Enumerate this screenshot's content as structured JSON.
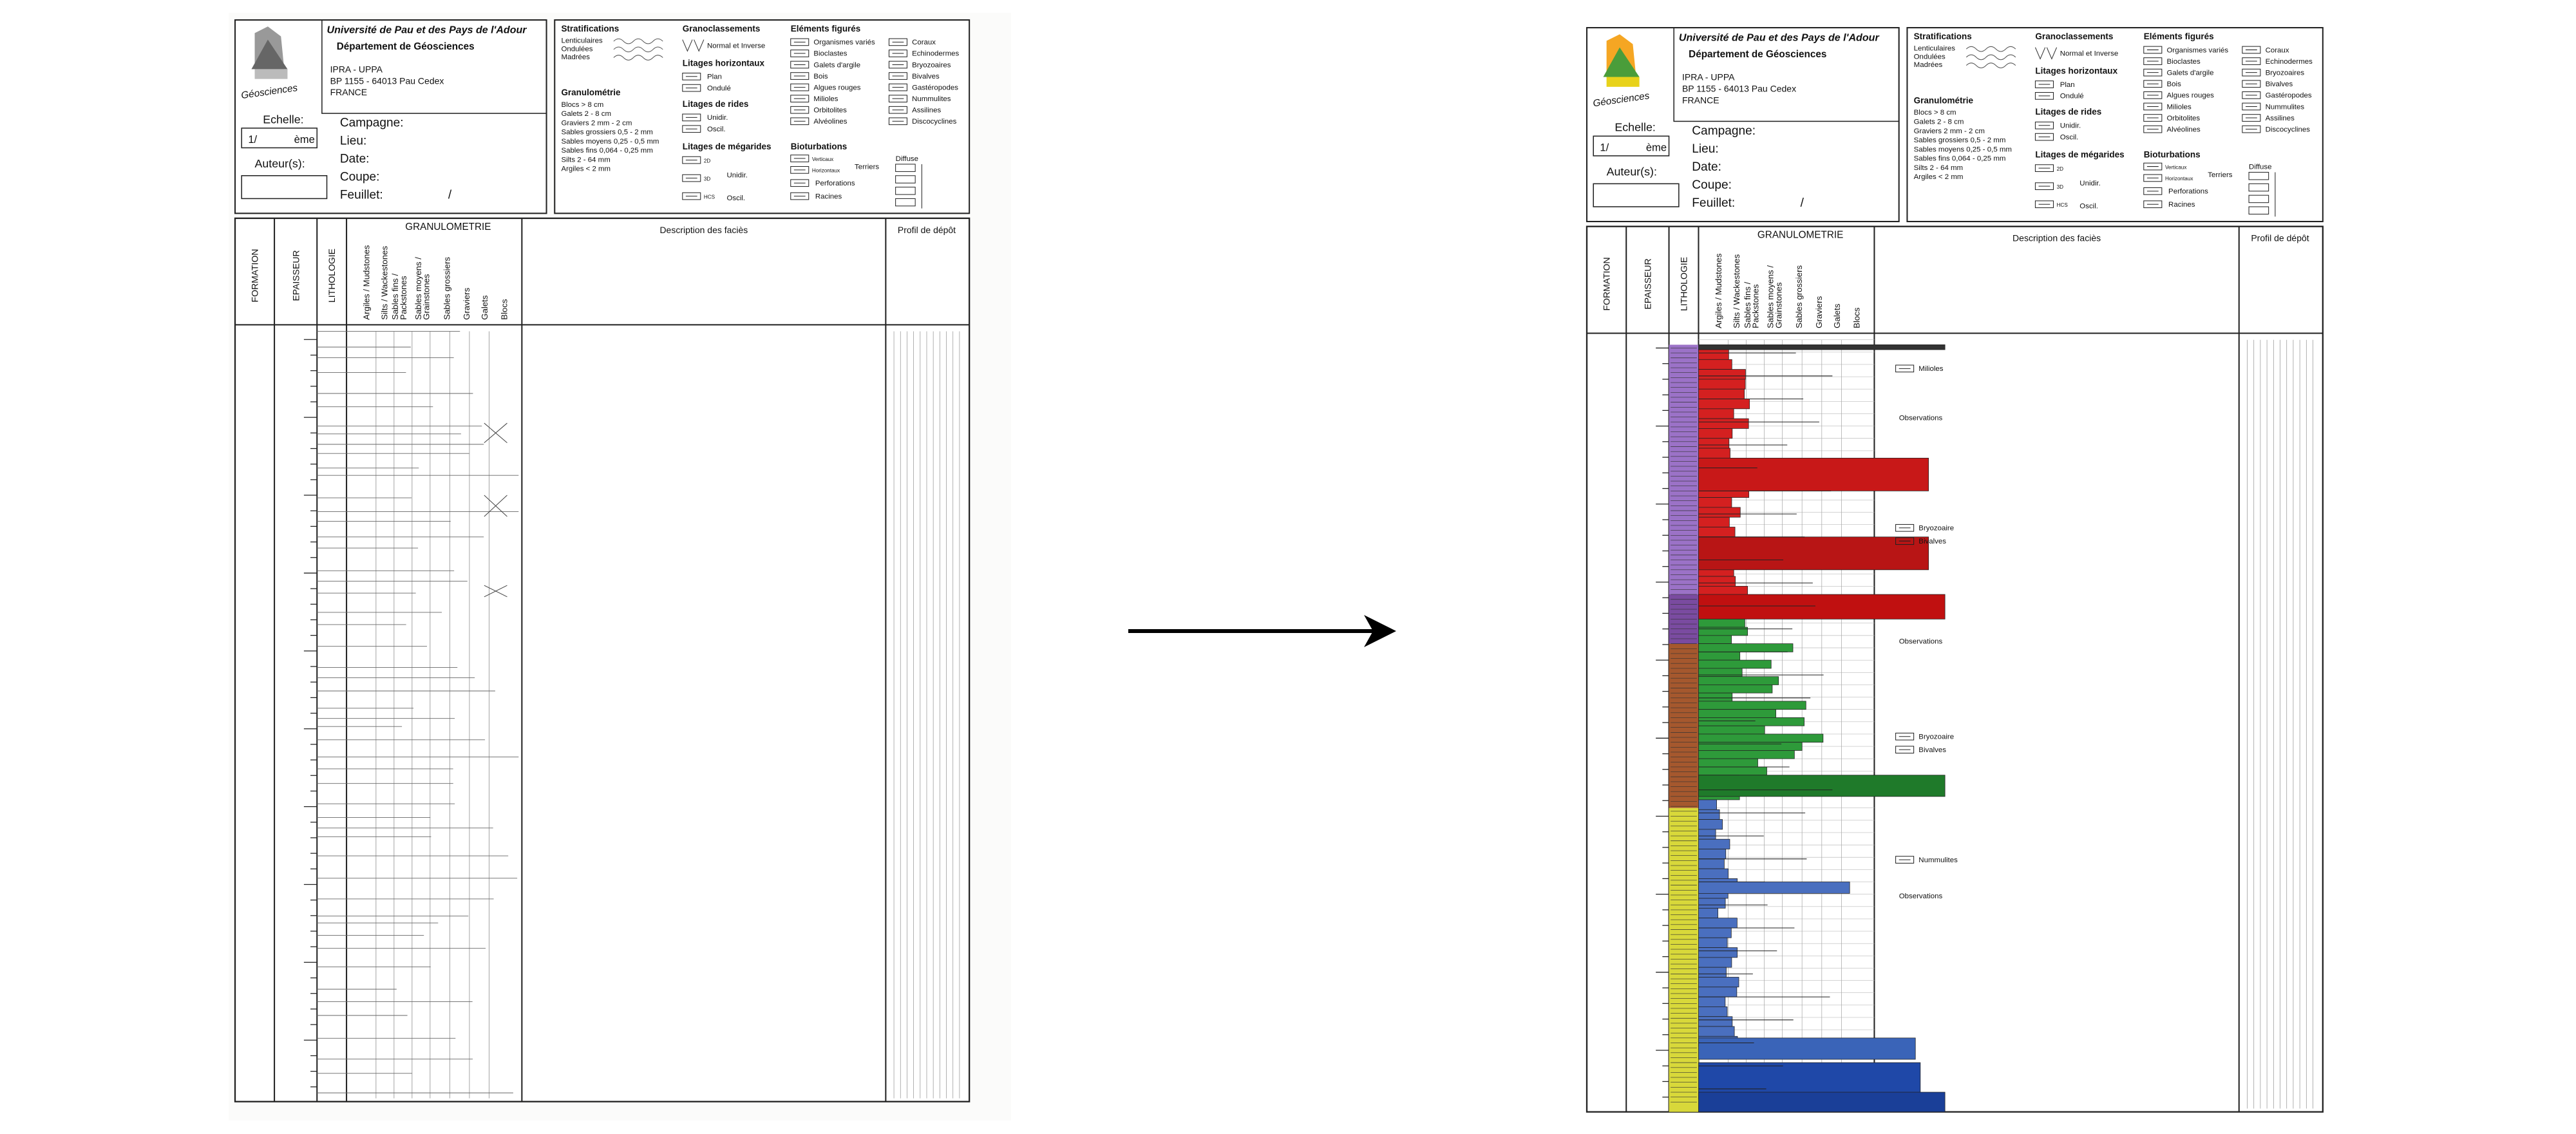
{
  "header": {
    "university": "Université de Pau et des Pays de l'Adour",
    "department": "Département de Géosciences",
    "lines": [
      "IPRA - UPPA",
      "BP 1155 - 64013 Pau Cedex",
      "FRANCE"
    ],
    "logo": "Géosciences"
  },
  "form": {
    "scale": "Echelle:",
    "scale_prefix": "1/",
    "scale_suffix": "ème",
    "authors": "Auteur(s):",
    "fields": [
      "Campagne:",
      "Lieu:",
      "Date:",
      "Coupe:",
      "Feuillet:"
    ],
    "sheet_sep": "/"
  },
  "legend": {
    "stratifications": {
      "title": "Stratifications",
      "items": [
        "Lenticulaires",
        "Ondulées",
        "Madrées"
      ]
    },
    "granulometry": {
      "title": "Granulométrie",
      "items": [
        "Blocs > 8 cm",
        "Galets 2 - 8 cm",
        "Graviers 2 mm - 2 cm",
        "Sables grossiers 0,5 - 2 mm",
        "Sables moyens 0,25 - 0,5 mm",
        "Sables fins 0,064 - 0,25 mm",
        "Silts 2 - 64 mm",
        "Argiles < 2 mm"
      ]
    },
    "grading": {
      "title": "Granoclassements",
      "items": [
        "Normal et Inverse"
      ]
    },
    "horizontal": {
      "title": "Litages horizontaux",
      "items": [
        "Plan",
        "Ondulé"
      ]
    },
    "ripples": {
      "title": "Litages de rides",
      "items": [
        "Unidir.",
        "Oscil."
      ]
    },
    "megaripples": {
      "title": "Litages de mégarides",
      "marks": [
        "2D",
        "3D",
        "HCS"
      ],
      "items": [
        "Unidir.",
        "Oscil."
      ]
    },
    "elements": {
      "title": "Eléments figurés",
      "items": [
        "Organismes variés",
        "Bioclastes",
        "Galets d'argile",
        "Bois",
        "Algues rouges",
        "Milioles",
        "Orbitolites",
        "Alvéolines",
        "Coraux",
        "Echinodermes",
        "Bryozoaires",
        "Bivalves",
        "Gastéropodes",
        "Nummulites",
        "Assilines",
        "Discocyclines"
      ]
    },
    "bioturbation": {
      "title": "Bioturbations",
      "items": [
        "Verticaux",
        "Horizontaux",
        "Perforations",
        "Racines"
      ],
      "burrows": "Terriers",
      "diffuse": "Diffuse"
    }
  },
  "log": {
    "columns": [
      "FORMATION",
      "EPAISSEUR",
      "LITHOLOGIE"
    ],
    "granulometry": "GRANULOMETRIE",
    "grain_classes": [
      [
        "Argiles / Mudstones"
      ],
      [
        "Silts / Wackestones"
      ],
      [
        "Sables fins /",
        "Packstones"
      ],
      [
        "Sables moyens /",
        "Grainstones"
      ],
      [
        "Sables grossiers"
      ],
      [
        "Graviers"
      ],
      [
        "Galets"
      ],
      [
        "Blocs"
      ]
    ],
    "description": "Description des faciès",
    "profile": "Profil de dépôt"
  },
  "annotations": [
    "Milioles",
    "Observations",
    "Bryozoaire",
    "Bivalves",
    "Observations",
    "Bryozoaire",
    "Bivalves",
    "Nummulites",
    "Observations"
  ]
}
